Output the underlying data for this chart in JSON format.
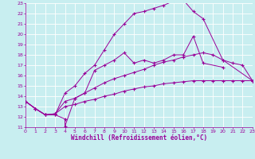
{
  "xlabel": "Windchill (Refroidissement éolien,°C)",
  "background_color": "#c8eef0",
  "grid_color": "#ffffff",
  "line_color": "#990099",
  "xlim": [
    0,
    23
  ],
  "ylim": [
    11,
    23
  ],
  "xticks": [
    0,
    1,
    2,
    3,
    4,
    5,
    6,
    7,
    8,
    9,
    10,
    11,
    12,
    13,
    14,
    15,
    16,
    17,
    18,
    19,
    20,
    21,
    22,
    23
  ],
  "yticks": [
    11,
    12,
    13,
    14,
    15,
    16,
    17,
    18,
    19,
    20,
    21,
    22,
    23
  ],
  "line1_x": [
    0,
    1,
    2,
    3,
    4,
    4,
    5,
    6,
    7,
    8,
    9,
    10,
    11,
    12,
    13,
    14,
    15,
    16,
    17,
    18,
    20
  ],
  "line1_y": [
    13.5,
    12.8,
    12.2,
    12.2,
    11.8,
    11.1,
    13.8,
    14.3,
    16.5,
    17.0,
    17.5,
    18.2,
    17.2,
    17.5,
    17.2,
    17.5,
    18.0,
    18.0,
    19.8,
    17.2,
    16.8
  ],
  "line2_x": [
    0,
    1,
    2,
    3,
    4,
    5,
    6,
    7,
    8,
    9,
    10,
    11,
    12,
    13,
    14,
    15,
    16,
    17,
    18,
    20,
    23
  ],
  "line2_y": [
    13.5,
    12.8,
    12.2,
    12.2,
    14.3,
    15.0,
    16.2,
    17.0,
    18.5,
    20.0,
    21.0,
    22.0,
    22.2,
    22.5,
    22.8,
    23.2,
    23.3,
    22.2,
    21.5,
    17.5,
    15.5
  ],
  "line3_x": [
    0,
    1,
    2,
    3,
    4,
    5,
    6,
    7,
    8,
    9,
    10,
    11,
    12,
    13,
    14,
    15,
    16,
    17,
    18,
    19,
    20,
    21,
    22,
    23
  ],
  "line3_y": [
    13.5,
    12.8,
    12.2,
    12.3,
    13.5,
    13.8,
    14.3,
    14.8,
    15.3,
    15.7,
    16.0,
    16.3,
    16.6,
    17.0,
    17.3,
    17.5,
    17.8,
    18.0,
    18.2,
    18.0,
    17.5,
    17.2,
    17.0,
    15.5
  ],
  "line4_x": [
    0,
    1,
    2,
    3,
    4,
    5,
    6,
    7,
    8,
    9,
    10,
    11,
    12,
    13,
    14,
    15,
    16,
    17,
    18,
    19,
    20,
    21,
    22,
    23
  ],
  "line4_y": [
    13.5,
    12.8,
    12.2,
    12.3,
    13.0,
    13.2,
    13.5,
    13.7,
    14.0,
    14.2,
    14.5,
    14.7,
    14.9,
    15.0,
    15.2,
    15.3,
    15.4,
    15.5,
    15.5,
    15.5,
    15.5,
    15.5,
    15.5,
    15.5
  ]
}
